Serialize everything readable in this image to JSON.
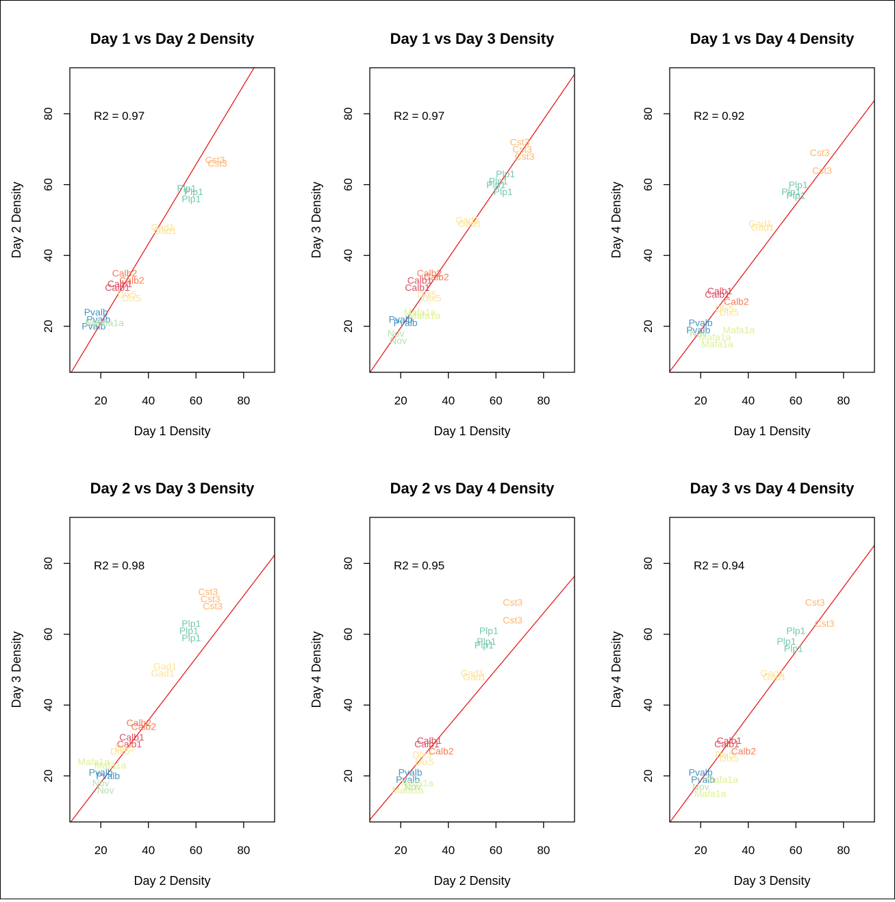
{
  "chart_data": [
    {
      "type": "scatter",
      "title": "Day 1 vs Day 2 Density",
      "xlabel": "Day 1 Density",
      "ylabel": "Day 2 Density",
      "xlim": [
        7,
        93
      ],
      "ylim": [
        7,
        93
      ],
      "x_ticks": [
        20,
        40,
        60,
        80
      ],
      "y_ticks": [
        20,
        40,
        60,
        80
      ],
      "annotation": "R2 = 0.97",
      "reference_line": {
        "slope": 1.12,
        "intercept": -1.5,
        "color": "#e41a1c"
      },
      "points": [
        {
          "label": "Cst3",
          "x": 68,
          "y": 67,
          "color": "#fdae61"
        },
        {
          "label": "Cst3",
          "x": 69,
          "y": 66,
          "color": "#fdae61"
        },
        {
          "label": "Plp1",
          "x": 56,
          "y": 59,
          "color": "#66c2a5"
        },
        {
          "label": "Plp1",
          "x": 59,
          "y": 58,
          "color": "#66c2a5"
        },
        {
          "label": "Plp1",
          "x": 58,
          "y": 56,
          "color": "#66c2a5"
        },
        {
          "label": "Gad1",
          "x": 46,
          "y": 48,
          "color": "#fee08b"
        },
        {
          "label": "Gad1",
          "x": 47,
          "y": 47,
          "color": "#fee08b"
        },
        {
          "label": "Calb2",
          "x": 30,
          "y": 35,
          "color": "#f46d43"
        },
        {
          "label": "Calb2",
          "x": 33,
          "y": 33,
          "color": "#f46d43"
        },
        {
          "label": "Calb1",
          "x": 28,
          "y": 32,
          "color": "#d53e4f"
        },
        {
          "label": "Calb1",
          "x": 27,
          "y": 31,
          "color": "#d53e4f"
        },
        {
          "label": "Dlx5",
          "x": 31,
          "y": 29,
          "color": "#fee08b"
        },
        {
          "label": "Dlx5",
          "x": 33,
          "y": 28,
          "color": "#fee08b"
        },
        {
          "label": "Pvalb",
          "x": 18,
          "y": 24,
          "color": "#3288bd"
        },
        {
          "label": "Pvalb",
          "x": 19,
          "y": 22,
          "color": "#3288bd"
        },
        {
          "label": "Pvalb",
          "x": 17,
          "y": 20,
          "color": "#3288bd"
        },
        {
          "label": "Mafa1a",
          "x": 23,
          "y": 21,
          "color": "#abdda4"
        },
        {
          "label": "Nov",
          "x": 17,
          "y": 21,
          "color": "#abdda4"
        }
      ]
    },
    {
      "type": "scatter",
      "title": "Day 1 vs Day 3 Density",
      "xlabel": "Day 1 Density",
      "ylabel": "Day 3 Density",
      "xlim": [
        7,
        93
      ],
      "ylim": [
        7,
        93
      ],
      "x_ticks": [
        20,
        40,
        60,
        80
      ],
      "y_ticks": [
        20,
        40,
        60,
        80
      ],
      "annotation": "R2 = 0.97",
      "reference_line": {
        "slope": 0.98,
        "intercept": 0.0,
        "color": "#e41a1c"
      },
      "points": [
        {
          "label": "Cst3",
          "x": 70,
          "y": 72,
          "color": "#fdae61"
        },
        {
          "label": "Cst3",
          "x": 71,
          "y": 70,
          "color": "#fdae61"
        },
        {
          "label": "Cst3",
          "x": 72,
          "y": 68,
          "color": "#fdae61"
        },
        {
          "label": "Plp1",
          "x": 64,
          "y": 63,
          "color": "#66c2a5"
        },
        {
          "label": "Plp1",
          "x": 61,
          "y": 61,
          "color": "#66c2a5"
        },
        {
          "label": "Plp1",
          "x": 60,
          "y": 60,
          "color": "#66c2a5"
        },
        {
          "label": "Plp1",
          "x": 63,
          "y": 58,
          "color": "#66c2a5"
        },
        {
          "label": "Gad1",
          "x": 48,
          "y": 50,
          "color": "#fee08b"
        },
        {
          "label": "Gad1",
          "x": 49,
          "y": 49,
          "color": "#fee08b"
        },
        {
          "label": "Calb2",
          "x": 32,
          "y": 35,
          "color": "#f46d43"
        },
        {
          "label": "Calb2",
          "x": 35,
          "y": 34,
          "color": "#f46d43"
        },
        {
          "label": "Calb1",
          "x": 28,
          "y": 33,
          "color": "#d53e4f"
        },
        {
          "label": "Calb1",
          "x": 27,
          "y": 31,
          "color": "#d53e4f"
        },
        {
          "label": "Dlx5",
          "x": 31,
          "y": 29,
          "color": "#fee08b"
        },
        {
          "label": "Dlx5",
          "x": 33,
          "y": 28,
          "color": "#fee08b"
        },
        {
          "label": "Mafa1a",
          "x": 28,
          "y": 24,
          "color": "#d9ef8b"
        },
        {
          "label": "Mafa1a",
          "x": 30,
          "y": 23,
          "color": "#d9ef8b"
        },
        {
          "label": "Pvalb",
          "x": 20,
          "y": 22,
          "color": "#3288bd"
        },
        {
          "label": "Pvalb",
          "x": 22,
          "y": 21,
          "color": "#3288bd"
        },
        {
          "label": "Nov",
          "x": 18,
          "y": 18,
          "color": "#abdda4"
        },
        {
          "label": "Nov",
          "x": 19,
          "y": 16,
          "color": "#abdda4"
        }
      ]
    },
    {
      "type": "scatter",
      "title": "Day 1 vs Day 4 Density",
      "xlabel": "Day 1 Density",
      "ylabel": "Day 4 Density",
      "xlim": [
        7,
        93
      ],
      "ylim": [
        7,
        93
      ],
      "x_ticks": [
        20,
        40,
        60,
        80
      ],
      "y_ticks": [
        20,
        40,
        60,
        80
      ],
      "annotation": "R2 = 0.92",
      "reference_line": {
        "slope": 0.89,
        "intercept": 1.0,
        "color": "#e41a1c"
      },
      "points": [
        {
          "label": "Cst3",
          "x": 70,
          "y": 69,
          "color": "#fdae61"
        },
        {
          "label": "Cst3",
          "x": 71,
          "y": 64,
          "color": "#fdae61"
        },
        {
          "label": "Plp1",
          "x": 61,
          "y": 60,
          "color": "#66c2a5"
        },
        {
          "label": "Plp1",
          "x": 58,
          "y": 58,
          "color": "#66c2a5"
        },
        {
          "label": "Plp1",
          "x": 60,
          "y": 57,
          "color": "#66c2a5"
        },
        {
          "label": "Gad1",
          "x": 45,
          "y": 49,
          "color": "#fee08b"
        },
        {
          "label": "Gad1",
          "x": 46,
          "y": 48,
          "color": "#fee08b"
        },
        {
          "label": "Calb1",
          "x": 28,
          "y": 30,
          "color": "#d53e4f"
        },
        {
          "label": "Calb1",
          "x": 27,
          "y": 29,
          "color": "#d53e4f"
        },
        {
          "label": "Calb2",
          "x": 35,
          "y": 27,
          "color": "#f46d43"
        },
        {
          "label": "Dlx5",
          "x": 30,
          "y": 25,
          "color": "#fee08b"
        },
        {
          "label": "Dlx5",
          "x": 32,
          "y": 24,
          "color": "#fee08b"
        },
        {
          "label": "Pvalb",
          "x": 20,
          "y": 21,
          "color": "#3288bd"
        },
        {
          "label": "Pvalb",
          "x": 19,
          "y": 19,
          "color": "#3288bd"
        },
        {
          "label": "Mafa1a",
          "x": 36,
          "y": 19,
          "color": "#d9ef8b"
        },
        {
          "label": "Nov",
          "x": 19,
          "y": 18,
          "color": "#abdda4"
        },
        {
          "label": "Mafa1a",
          "x": 26,
          "y": 17,
          "color": "#d9ef8b"
        },
        {
          "label": "Mafa1a",
          "x": 27,
          "y": 15,
          "color": "#d9ef8b"
        }
      ]
    },
    {
      "type": "scatter",
      "title": "Day 2 vs Day 3 Density",
      "xlabel": "Day 2 Density",
      "ylabel": "Day 3 Density",
      "xlim": [
        7,
        93
      ],
      "ylim": [
        7,
        93
      ],
      "x_ticks": [
        20,
        40,
        60,
        80
      ],
      "y_ticks": [
        20,
        40,
        60,
        80
      ],
      "annotation": "R2 = 0.98",
      "reference_line": {
        "slope": 0.88,
        "intercept": 0.5,
        "color": "#e41a1c"
      },
      "points": [
        {
          "label": "Cst3",
          "x": 65,
          "y": 72,
          "color": "#fdae61"
        },
        {
          "label": "Cst3",
          "x": 66,
          "y": 70,
          "color": "#fdae61"
        },
        {
          "label": "Cst3",
          "x": 67,
          "y": 68,
          "color": "#fdae61"
        },
        {
          "label": "Plp1",
          "x": 58,
          "y": 63,
          "color": "#66c2a5"
        },
        {
          "label": "Plp1",
          "x": 57,
          "y": 61,
          "color": "#66c2a5"
        },
        {
          "label": "Plp1",
          "x": 58,
          "y": 59,
          "color": "#66c2a5"
        },
        {
          "label": "Gad1",
          "x": 47,
          "y": 51,
          "color": "#fee08b"
        },
        {
          "label": "Gad1",
          "x": 46,
          "y": 49,
          "color": "#fee08b"
        },
        {
          "label": "Calb2",
          "x": 36,
          "y": 35,
          "color": "#f46d43"
        },
        {
          "label": "Calb2",
          "x": 38,
          "y": 34,
          "color": "#f46d43"
        },
        {
          "label": "Calb1",
          "x": 33,
          "y": 31,
          "color": "#d53e4f"
        },
        {
          "label": "Calb1",
          "x": 32,
          "y": 29,
          "color": "#d53e4f"
        },
        {
          "label": "Dlx5",
          "x": 30,
          "y": 28,
          "color": "#fee08b"
        },
        {
          "label": "Dlx5",
          "x": 28,
          "y": 27,
          "color": "#fee08b"
        },
        {
          "label": "Mafa1a",
          "x": 17,
          "y": 24,
          "color": "#d9ef8b"
        },
        {
          "label": "Mafa1a",
          "x": 24,
          "y": 23,
          "color": "#d9ef8b"
        },
        {
          "label": "Pvalb",
          "x": 20,
          "y": 21,
          "color": "#3288bd"
        },
        {
          "label": "Pvalb",
          "x": 23,
          "y": 20,
          "color": "#3288bd"
        },
        {
          "label": "Nov",
          "x": 20,
          "y": 18,
          "color": "#abdda4"
        },
        {
          "label": "Nov",
          "x": 22,
          "y": 16,
          "color": "#abdda4"
        }
      ]
    },
    {
      "type": "scatter",
      "title": "Day 2 vs Day 4 Density",
      "xlabel": "Day 2 Density",
      "ylabel": "Day 4 Density",
      "xlim": [
        7,
        93
      ],
      "ylim": [
        7,
        93
      ],
      "x_ticks": [
        20,
        40,
        60,
        80
      ],
      "y_ticks": [
        20,
        40,
        60,
        80
      ],
      "annotation": "R2 = 0.95",
      "reference_line": {
        "slope": 0.8,
        "intercept": 2.0,
        "color": "#e41a1c"
      },
      "points": [
        {
          "label": "Cst3",
          "x": 67,
          "y": 69,
          "color": "#fdae61"
        },
        {
          "label": "Cst3",
          "x": 67,
          "y": 64,
          "color": "#fdae61"
        },
        {
          "label": "Plp1",
          "x": 57,
          "y": 61,
          "color": "#66c2a5"
        },
        {
          "label": "Plp1",
          "x": 56,
          "y": 58,
          "color": "#66c2a5"
        },
        {
          "label": "Plp1",
          "x": 55,
          "y": 57,
          "color": "#66c2a5"
        },
        {
          "label": "Gad1",
          "x": 50,
          "y": 49,
          "color": "#fee08b"
        },
        {
          "label": "Gad1",
          "x": 51,
          "y": 48,
          "color": "#fee08b"
        },
        {
          "label": "Calb1",
          "x": 32,
          "y": 30,
          "color": "#d53e4f"
        },
        {
          "label": "Calb1",
          "x": 31,
          "y": 29,
          "color": "#d53e4f"
        },
        {
          "label": "Calb2",
          "x": 37,
          "y": 27,
          "color": "#f46d43"
        },
        {
          "label": "Dlx5",
          "x": 29,
          "y": 26,
          "color": "#fee08b"
        },
        {
          "label": "Dlx5",
          "x": 30,
          "y": 24,
          "color": "#fee08b"
        },
        {
          "label": "Pvalb",
          "x": 24,
          "y": 21,
          "color": "#3288bd"
        },
        {
          "label": "Pvalb",
          "x": 23,
          "y": 19,
          "color": "#3288bd"
        },
        {
          "label": "Mafa1a",
          "x": 27,
          "y": 18,
          "color": "#d9ef8b"
        },
        {
          "label": "Mafa1a",
          "x": 23,
          "y": 16,
          "color": "#d9ef8b"
        },
        {
          "label": "Nov",
          "x": 25,
          "y": 17,
          "color": "#abdda4"
        }
      ]
    },
    {
      "type": "scatter",
      "title": "Day 3 vs Day 4 Density",
      "xlabel": "Day 3 Density",
      "ylabel": "Day 4 Density",
      "xlim": [
        7,
        93
      ],
      "ylim": [
        7,
        93
      ],
      "x_ticks": [
        20,
        40,
        60,
        80
      ],
      "y_ticks": [
        20,
        40,
        60,
        80
      ],
      "annotation": "R2 = 0.94",
      "reference_line": {
        "slope": 0.91,
        "intercept": 0.5,
        "color": "#e41a1c"
      },
      "points": [
        {
          "label": "Cst3",
          "x": 68,
          "y": 69,
          "color": "#fdae61"
        },
        {
          "label": "Cst3",
          "x": 72,
          "y": 63,
          "color": "#fdae61"
        },
        {
          "label": "Plp1",
          "x": 60,
          "y": 61,
          "color": "#66c2a5"
        },
        {
          "label": "Plp1",
          "x": 56,
          "y": 58,
          "color": "#66c2a5"
        },
        {
          "label": "Plp1",
          "x": 59,
          "y": 56,
          "color": "#66c2a5"
        },
        {
          "label": "Gad1",
          "x": 50,
          "y": 49,
          "color": "#fee08b"
        },
        {
          "label": "Gad1",
          "x": 51,
          "y": 48,
          "color": "#fee08b"
        },
        {
          "label": "Calb1",
          "x": 32,
          "y": 30,
          "color": "#d53e4f"
        },
        {
          "label": "Calb1",
          "x": 31,
          "y": 29,
          "color": "#d53e4f"
        },
        {
          "label": "Calb2",
          "x": 38,
          "y": 27,
          "color": "#f46d43"
        },
        {
          "label": "Dlx5",
          "x": 30,
          "y": 26,
          "color": "#fee08b"
        },
        {
          "label": "Dlx5",
          "x": 32,
          "y": 25,
          "color": "#fee08b"
        },
        {
          "label": "Pvalb",
          "x": 20,
          "y": 21,
          "color": "#3288bd"
        },
        {
          "label": "Pvalb",
          "x": 21,
          "y": 19,
          "color": "#3288bd"
        },
        {
          "label": "Mafa1a",
          "x": 29,
          "y": 19,
          "color": "#d9ef8b"
        },
        {
          "label": "Nov",
          "x": 20,
          "y": 17,
          "color": "#abdda4"
        },
        {
          "label": "Mafa1a",
          "x": 24,
          "y": 15,
          "color": "#d9ef8b"
        }
      ]
    }
  ]
}
